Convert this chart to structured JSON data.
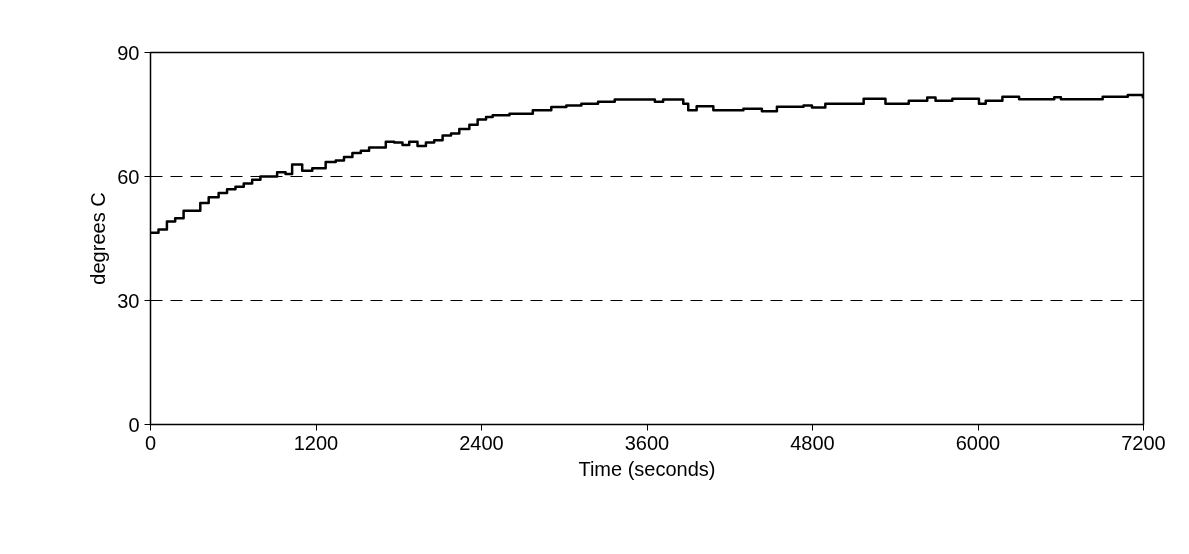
{
  "chart_data": {
    "type": "step",
    "xlabel": "Time (seconds)",
    "ylabel": "degrees C",
    "x": [
      0,
      58,
      119,
      179,
      240,
      361,
      422,
      494,
      555,
      616,
      676,
      737,
      797,
      918,
      979,
      1027,
      1100,
      1173,
      1270,
      1343,
      1403,
      1464,
      1525,
      1585,
      1706,
      1767,
      1827,
      1876,
      1936,
      1997,
      2057,
      2118,
      2179,
      2239,
      2312,
      2372,
      2433,
      2481,
      2603,
      2772,
      2906,
      3015,
      3124,
      3245,
      3366,
      3657,
      3717,
      3863,
      3899,
      3960,
      4081,
      4299,
      4433,
      4542,
      4639,
      4735,
      4796,
      4893,
      5171,
      5329,
      5498,
      5632,
      5692,
      5814,
      6007,
      6056,
      6177,
      6298,
      6553,
      6601,
      6904,
      7086,
      7195
    ],
    "series": [
      {
        "color": "#000000",
        "values": [
          46.4,
          47.2,
          49.1,
          49.9,
          51.7,
          53.6,
          55.0,
          56.0,
          56.9,
          57.5,
          58.3,
          59.2,
          60.0,
          61.0,
          60.6,
          62.9,
          61.4,
          62.0,
          63.5,
          63.9,
          64.7,
          65.7,
          66.2,
          67.0,
          68.4,
          68.2,
          67.6,
          68.4,
          67.4,
          68.2,
          68.8,
          69.9,
          70.4,
          71.5,
          72.5,
          73.8,
          74.4,
          74.8,
          75.2,
          76.0,
          76.8,
          77.2,
          77.6,
          78.1,
          78.6,
          78.1,
          78.6,
          77.6,
          76.0,
          77.0,
          76.0,
          76.4,
          75.8,
          76.9,
          76.9,
          77.2,
          76.7,
          77.6,
          78.8,
          77.6,
          78.3,
          79.1,
          78.3,
          78.8,
          77.6,
          78.3,
          79.3,
          78.7,
          79.2,
          78.7,
          79.3,
          79.7,
          79.2
        ]
      }
    ],
    "xlim": [
      0,
      7200
    ],
    "xticks": [
      0,
      1200,
      2400,
      3600,
      4800,
      6000,
      7200
    ],
    "ylim": [
      0,
      90
    ],
    "yticks": [
      0,
      30,
      60,
      90
    ],
    "grid": "y",
    "line_style": "solid",
    "marker": "none"
  }
}
